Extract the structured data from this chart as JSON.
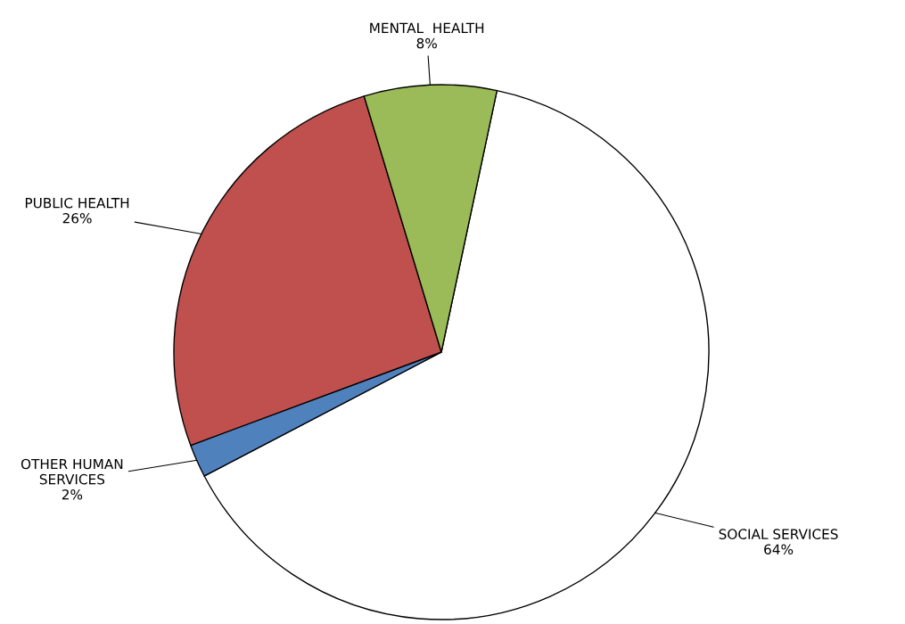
{
  "chart_data": {
    "type": "pie",
    "categories": [
      "SOCIAL SERVICES",
      "OTHER HUMAN SERVICES",
      "PUBLIC HEALTH",
      "MENTAL  HEALTH"
    ],
    "values": [
      64,
      2,
      26,
      8
    ],
    "colors": [
      "#ffffff",
      "#4f81bd",
      "#c0504d",
      "#9bbb59"
    ],
    "value_labels": [
      "64%",
      "2%",
      "26%",
      "8%"
    ]
  }
}
